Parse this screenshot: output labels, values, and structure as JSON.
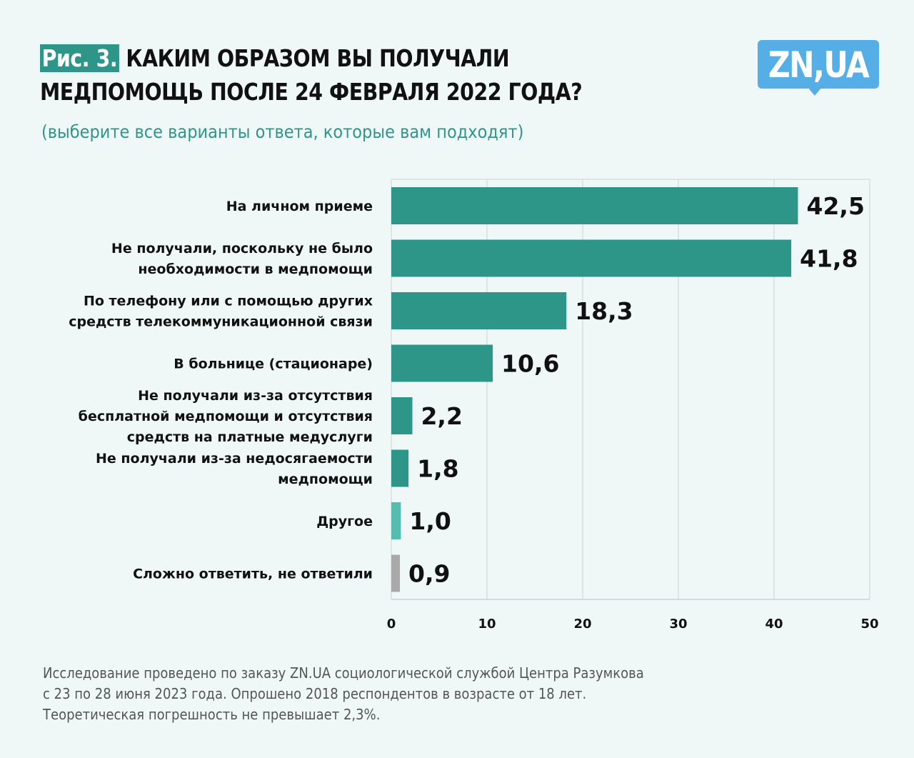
{
  "header": {
    "figure_label": "Рис. 3.",
    "title_line1": "КАКИМ ОБРАЗОМ ВЫ ПОЛУЧАЛИ",
    "title_line2": "МЕДПОМОЩЬ ПОСЛЕ 24 ФЕВРАЛЯ 2022 ГОДА?",
    "subtitle": "(выберите все варианты ответа, которые вам подходят)"
  },
  "logo": {
    "text": "ZN,UA",
    "color": "#55aee6"
  },
  "chart_data": {
    "type": "bar",
    "orientation": "horizontal",
    "title": "КАКИМ ОБРАЗОМ ВЫ ПОЛУЧАЛИ МЕДПОМОЩЬ ПОСЛЕ 24 ФЕВРАЛЯ 2022 ГОДА?",
    "subtitle": "(выберите все варианты ответа, которые вам подходят)",
    "xlabel": "",
    "ylabel": "",
    "xlim": [
      0,
      50
    ],
    "xticks": [
      0,
      10,
      20,
      30,
      40,
      50
    ],
    "grid": true,
    "categories": [
      [
        "На личном приеме"
      ],
      [
        "Не получали, поскольку не было",
        "необходимости в медпомощи"
      ],
      [
        "По телефону или с помощью других",
        "средств телекоммуникационной связи"
      ],
      [
        "В больнице (стационаре)"
      ],
      [
        "Не получали из-за отсутствия",
        "бесплатной медпомощи и отсутствия",
        "средств на платные медуслуги"
      ],
      [
        "Не получали из-за недосягаемости",
        "медпомощи"
      ],
      [
        "Другое"
      ],
      [
        "Сложно ответить, не ответили"
      ]
    ],
    "values": [
      42.5,
      41.8,
      18.3,
      10.6,
      2.2,
      1.8,
      1.0,
      0.9
    ],
    "value_labels": [
      "42,5",
      "41,8",
      "18,3",
      "10,6",
      "2,2",
      "1,8",
      "1,0",
      "0,9"
    ],
    "colors": [
      "#2e9688",
      "#2e9688",
      "#2e9688",
      "#2e9688",
      "#2e9688",
      "#2e9688",
      "#55bdb0",
      "#a9a9a9"
    ]
  },
  "footnote": {
    "line1": "Исследование проведено по заказу ZN.UA социологической службой Центра Разумкова",
    "line2": "с 23 по 28 июня 2023 года. Опрошено 2018 респондентов в возрасте от 18 лет.",
    "line3": "Теоретическая погрешность не превышает 2,3%."
  }
}
